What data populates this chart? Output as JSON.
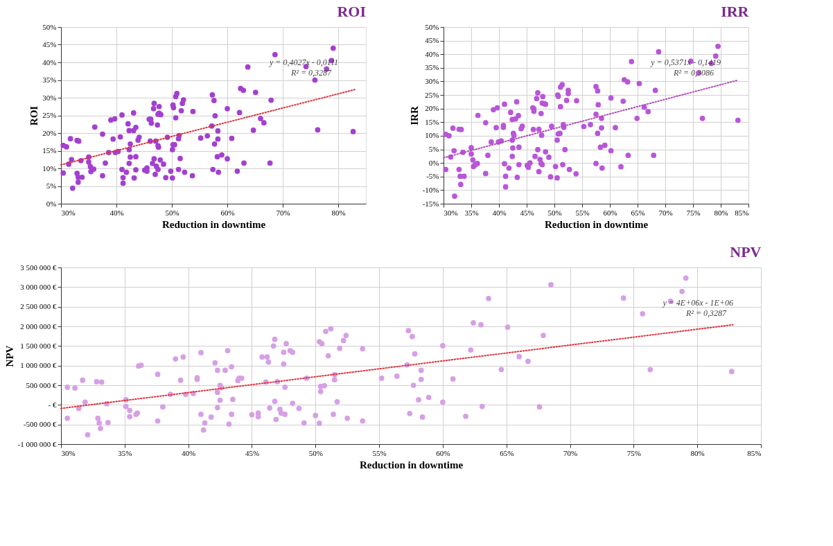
{
  "chart_data": [
    {
      "type": "scatter",
      "title": "ROI",
      "xlabel": "Reduction in downtime",
      "ylabel": "ROI",
      "grid": true,
      "xlim": [
        30,
        85
      ],
      "xticks": [
        {
          "value": 30,
          "label": "30%"
        },
        {
          "value": 40,
          "label": "40%"
        },
        {
          "value": 50,
          "label": "50%"
        },
        {
          "value": 60,
          "label": "60%"
        },
        {
          "value": 70,
          "label": "70%"
        },
        {
          "value": 80,
          "label": "80%"
        }
      ],
      "ylim": [
        0,
        50
      ],
      "yticks": [
        {
          "value": 0,
          "label": "0%"
        },
        {
          "value": 5,
          "label": "5%"
        },
        {
          "value": 10,
          "label": "10%"
        },
        {
          "value": 15,
          "label": "15%"
        },
        {
          "value": 20,
          "label": "20%"
        },
        {
          "value": 25,
          "label": "25%"
        },
        {
          "value": 30,
          "label": "30%"
        },
        {
          "value": 35,
          "label": "35%"
        },
        {
          "value": 40,
          "label": "40%"
        },
        {
          "value": 45,
          "label": "45%"
        },
        {
          "value": 50,
          "label": "50%"
        }
      ],
      "annotations": [
        "y = 0,4027x - 0,0111",
        "R² = 0,3287"
      ],
      "series": [
        {
          "marker": "circle",
          "color": "#a340cf",
          "x": [
            30.4,
            30.4,
            31.0,
            31.7,
            31.9,
            31.4,
            32.1,
            32.9,
            32.9,
            33.2,
            33.1,
            33.1,
            33.8,
            33.6,
            35.0,
            35.0,
            35.3,
            35.4,
            35.9,
            36.1,
            37.5,
            37.5,
            38.0,
            38.6,
            39.0,
            39.7,
            39.4,
            39.8,
            40.3,
            40.7,
            41.0,
            41.0,
            41.2,
            41.2,
            41.8,
            42.1,
            42.3,
            42.3,
            42.5,
            42.5,
            42.3,
            43.1,
            43.1,
            43.5,
            43.5,
            43.5,
            43.2,
            44.1,
            43.9,
            45.1,
            45.5,
            45.5,
            45.9,
            46.2,
            46.3,
            46.1,
            46.5,
            46.8,
            46.7,
            47.1,
            46.8,
            47.0,
            47.2,
            47.4,
            47.5,
            47.6,
            47.5,
            47.7,
            47.5,
            47.7,
            48.0,
            47.9,
            48.5,
            48.9,
            49.2,
            49.8,
            50.1,
            50.1,
            50.2,
            50.5,
            50.2,
            50.3,
            50.7,
            50.9,
            50.7,
            51.2,
            51.3,
            51.2,
            51.5,
            51.7,
            51.9,
            52.1,
            52.3,
            53.8,
            53.7,
            55.2,
            56.4,
            57.3,
            57.6,
            57.2,
            57.8,
            57.7,
            57.4,
            58.2,
            58.3,
            58.3,
            58.4,
            59.0,
            60.0,
            60.0,
            60.8,
            61.8,
            62.2,
            62.4,
            62.9,
            63.0,
            63.7,
            64.7,
            65.1,
            66.0,
            66.6,
            67.7,
            67.9,
            68.6,
            74.2,
            75.8,
            76.3,
            77.9,
            78.8,
            79.1,
            82.7
          ],
          "values": [
            8.7,
            16.5,
            16.1,
            18.4,
            12.5,
            11.2,
            4.4,
            8.6,
            17.9,
            17.7,
            7.5,
            6.1,
            7.5,
            12.2,
            13.2,
            11.8,
            10.5,
            9.1,
            9.8,
            21.7,
            19.7,
            7.9,
            11.5,
            14.5,
            23.7,
            24.0,
            18.3,
            14.5,
            14.8,
            18.9,
            25.1,
            9.7,
            7.4,
            5.8,
            8.9,
            22.6,
            20.7,
            15.3,
            16.9,
            13.2,
            11.4,
            25.7,
            20.7,
            21.6,
            13.3,
            9.6,
            7.3,
            18.8,
            18.0,
            9.5,
            10.1,
            9.2,
            23.9,
            23.9,
            22.8,
            17.7,
            11.4,
            28.4,
            26.9,
            17.7,
            12.7,
            8.3,
            10.6,
            22.3,
            16.4,
            16.0,
            9.7,
            27.5,
            25.3,
            25.6,
            25.2,
            12.4,
            11.2,
            7.4,
            18.8,
            9.2,
            7.3,
            15.3,
            16.7,
            16.7,
            27.9,
            27.2,
            30.3,
            31.2,
            24.3,
            18.4,
            19.3,
            9.7,
            12.8,
            26.3,
            28.4,
            29.4,
            8.9,
            26.1,
            7.9,
            18.6,
            19.2,
            30.8,
            29.2,
            22.0,
            24.9,
            16.9,
            9.7,
            13.3,
            18.3,
            20.6,
            8.9,
            13.8,
            12.7,
            26.9,
            18.5,
            9.2,
            25.8,
            32.6,
            32.1,
            11.5,
            38.7,
            20.8,
            31.5,
            24.1,
            22.9,
            11.5,
            29.3,
            42.2,
            38.8,
            35.0,
            20.9,
            38.1,
            40.5,
            44.0,
            20.4
          ]
        },
        {
          "type": "line",
          "color": "#e0303a",
          "line_style": "dotted",
          "x": [
            30,
            83
          ],
          "values": [
            11.0,
            32.3
          ]
        }
      ]
    },
    {
      "type": "scatter",
      "title": "IRR",
      "xlabel": "Reduction in downtime",
      "ylabel": "IRR",
      "grid": true,
      "xlim": [
        30,
        85
      ],
      "xticks": [
        {
          "value": 30,
          "label": "30%"
        },
        {
          "value": 35,
          "label": "35%"
        },
        {
          "value": 40,
          "label": "40%"
        },
        {
          "value": 45,
          "label": "45%"
        },
        {
          "value": 50,
          "label": "50%"
        },
        {
          "value": 55,
          "label": "55%"
        },
        {
          "value": 60,
          "label": "60%"
        },
        {
          "value": 65,
          "label": "65%"
        },
        {
          "value": 70,
          "label": "70%"
        },
        {
          "value": 75,
          "label": "75%"
        },
        {
          "value": 80,
          "label": "80%"
        },
        {
          "value": 85,
          "label": "85%"
        }
      ],
      "ylim": [
        -15,
        50
      ],
      "yticks": [
        {
          "value": -15,
          "label": "-15%"
        },
        {
          "value": -10,
          "label": "-10%"
        },
        {
          "value": -5,
          "label": "-5%"
        },
        {
          "value": 0,
          "label": "0%"
        },
        {
          "value": 5,
          "label": "5%"
        },
        {
          "value": 10,
          "label": "10%"
        },
        {
          "value": 15,
          "label": "15%"
        },
        {
          "value": 20,
          "label": "20%"
        },
        {
          "value": 25,
          "label": "25%"
        },
        {
          "value": 30,
          "label": "30%"
        },
        {
          "value": 35,
          "label": "35%"
        },
        {
          "value": 40,
          "label": "40%"
        },
        {
          "value": 45,
          "label": "45%"
        },
        {
          "value": 50,
          "label": "50%"
        }
      ],
      "annotations": [
        "y = 0,5371x - 0,1419",
        "R² = 0,3086"
      ],
      "series": [
        {
          "marker": "circle",
          "color": "#b856d8",
          "x": [
            30.4,
            30.4,
            31.0,
            31.3,
            31.7,
            31.9,
            32.0,
            32.8,
            32.8,
            33.2,
            33.0,
            33.1,
            33.5,
            33.7,
            35.0,
            35.0,
            35.3,
            35.4,
            35.7,
            36.1,
            36.2,
            37.6,
            37.6,
            38.0,
            38.6,
            39.0,
            39.7,
            39.5,
            39.9,
            40.4,
            40.8,
            40.8,
            41.0,
            41.0,
            41.2,
            41.2,
            41.8,
            42.1,
            42.4,
            42.4,
            42.4,
            42.5,
            42.6,
            42.7,
            43.0,
            43.2,
            43.3,
            43.6,
            43.6,
            43.5,
            44.0,
            44.2,
            45.1,
            45.3,
            45.6,
            46.1,
            46.3,
            46.3,
            46.2,
            46.5,
            46.8,
            47.0,
            47.0,
            47.2,
            47.2,
            47.4,
            47.6,
            47.7,
            47.6,
            47.8,
            47.9,
            47.8,
            48.2,
            48.4,
            48.4,
            49.0,
            49.3,
            49.5,
            50.2,
            50.5,
            50.6,
            50.7,
            50.5,
            50.7,
            51.0,
            51.1,
            51.4,
            51.1,
            51.6,
            51.7,
            51.5,
            51.9,
            52.2,
            52.5,
            52.5,
            52.7,
            54.0,
            53.9,
            55.3,
            56.5,
            57.5,
            57.8,
            57.5,
            57.9,
            57.8,
            57.5,
            58.3,
            58.5,
            58.5,
            58.6,
            59.1,
            60.2,
            60.2,
            61.0,
            62.0,
            62.4,
            62.6,
            63.2,
            63.3,
            63.9,
            64.9,
            65.3,
            66.2,
            66.9,
            67.9,
            68.2,
            68.8,
            74.6,
            76.0,
            76.7,
            78.3,
            79.1,
            79.5,
            83.1
          ],
          "values": [
            10.5,
            -2.4,
            10.0,
            2.2,
            12.8,
            4.5,
            -12.2,
            12.4,
            -2.4,
            12.3,
            -4.9,
            -7.9,
            3.9,
            -4.9,
            5.6,
            3.3,
            1.1,
            -1.3,
            -0.7,
            -0.2,
            17.5,
            14.8,
            -3.9,
            2.8,
            7.7,
            19.6,
            20.3,
            13.0,
            7.7,
            8.1,
            13.8,
            13.1,
            21.6,
            -0.3,
            -4.9,
            -8.8,
            -1.9,
            18.6,
            16.0,
            8.4,
            2.4,
            5.5,
            10.9,
            10.1,
            16.2,
            22.5,
            -5.3,
            5.8,
            -0.6,
            17.4,
            12.6,
            13.5,
            -0.9,
            -1.6,
            0.0,
            20.3,
            19.9,
            19.0,
            12.3,
            2.4,
            23.7,
            25.8,
            4.9,
            12.4,
            -3.2,
            1.3,
            18.2,
            10.2,
            -0.2,
            -0.6,
            24.4,
            22.0,
            21.8,
            21.6,
            4.1,
            2.1,
            -5.1,
            13.5,
            -1.3,
            -5.5,
            25.0,
            24.5,
            8.4,
            10.7,
            10.9,
            27.9,
            28.8,
            20.7,
            14.1,
            13.1,
            -0.6,
            4.9,
            23.0,
            26.7,
            25.5,
            -2.4,
            22.9,
            -4.0,
            13.4,
            14.1,
            28.1,
            26.5,
            17.9,
            21.4,
            10.9,
            -0.2,
            5.8,
            16.4,
            12.9,
            -1.9,
            6.5,
            23.9,
            4.5,
            13.0,
            -1.4,
            22.7,
            30.6,
            29.8,
            2.8,
            37.3,
            16.4,
            29.2,
            20.5,
            18.9,
            2.8,
            26.7,
            40.9,
            37.4,
            33.1,
            16.4,
            36.6,
            39.3,
            42.9,
            15.7
          ]
        },
        {
          "type": "line",
          "color": "#b04ab8",
          "line_style": "dotted",
          "x": [
            30,
            83
          ],
          "values": [
            1.9,
            30.4
          ]
        }
      ]
    },
    {
      "type": "scatter",
      "title": "NPV",
      "xlabel": "Reduction in downtime",
      "ylabel": "NPV",
      "grid": true,
      "xlim": [
        30,
        85
      ],
      "xticks": [
        {
          "value": 30,
          "label": "30%"
        },
        {
          "value": 35,
          "label": "35%"
        },
        {
          "value": 40,
          "label": "40%"
        },
        {
          "value": 45,
          "label": "45%"
        },
        {
          "value": 50,
          "label": "50%"
        },
        {
          "value": 55,
          "label": "55%"
        },
        {
          "value": 60,
          "label": "60%"
        },
        {
          "value": 65,
          "label": "65%"
        },
        {
          "value": 70,
          "label": "70%"
        },
        {
          "value": 75,
          "label": "75%"
        },
        {
          "value": 80,
          "label": "80%"
        },
        {
          "value": 85,
          "label": "85%"
        }
      ],
      "ylim": [
        -1000000,
        3500000
      ],
      "yticks": [
        {
          "value": -1000000,
          "label": "-1 000 000 €"
        },
        {
          "value": -500000,
          "label": "-500 000 €"
        },
        {
          "value": 0,
          "label": "- €"
        },
        {
          "value": 500000,
          "label": "500 000 €"
        },
        {
          "value": 1000000,
          "label": "1 000 000 €"
        },
        {
          "value": 1500000,
          "label": "1 500 000 €"
        },
        {
          "value": 2000000,
          "label": "2 000 000 €"
        },
        {
          "value": 2500000,
          "label": "2 500 000 €"
        },
        {
          "value": 3000000,
          "label": "3 000 000 €"
        },
        {
          "value": 3500000,
          "label": "3 500 000 €"
        }
      ],
      "annotations": [
        "y = 4E+06x - 1E+06",
        "R² = 0,3287"
      ],
      "series": [
        {
          "marker": "circle",
          "color": "#d6a0e4",
          "x": [
            30.5,
            30.5,
            31.1,
            31.4,
            31.7,
            31.9,
            32.1,
            32.8,
            32.9,
            33.0,
            33.1,
            33.2,
            33.6,
            33.7,
            35.1,
            35.1,
            35.4,
            35.4,
            35.9,
            36.0,
            36.1,
            36.3,
            37.6,
            37.6,
            38.0,
            38.6,
            39.0,
            39.4,
            39.6,
            39.8,
            40.4,
            40.7,
            40.7,
            41.0,
            41.0,
            41.3,
            41.2,
            41.8,
            42.1,
            42.3,
            42.3,
            42.3,
            42.5,
            42.5,
            42.6,
            42.9,
            43.1,
            43.2,
            43.4,
            43.5,
            43.4,
            43.9,
            44.0,
            44.2,
            45.0,
            45.5,
            45.5,
            45.8,
            46.1,
            46.2,
            46.3,
            46.4,
            46.7,
            46.8,
            46.8,
            46.9,
            47.0,
            47.2,
            47.3,
            47.6,
            47.5,
            47.5,
            47.6,
            47.7,
            48.0,
            48.2,
            48.2,
            48.7,
            49.1,
            49.3,
            50.0,
            50.3,
            50.3,
            50.5,
            50.4,
            50.4,
            50.7,
            50.8,
            51.2,
            51.0,
            51.4,
            51.5,
            51.5,
            51.7,
            51.9,
            52.2,
            52.4,
            52.5,
            53.7,
            53.7,
            55.2,
            56.4,
            57.3,
            57.6,
            57.2,
            57.4,
            57.8,
            57.7,
            58.1,
            58.3,
            58.3,
            58.4,
            58.9,
            60.0,
            60.0,
            60.8,
            61.8,
            62.2,
            62.4,
            63.0,
            63.1,
            63.6,
            64.6,
            65.1,
            66.0,
            66.7,
            67.6,
            67.9,
            68.5,
            74.2,
            75.7,
            76.3,
            77.9,
            78.8,
            79.1,
            82.7
          ],
          "values": [
            450000,
            -340000,
            430000,
            -90000,
            630000,
            70000,
            -760000,
            590000,
            -340000,
            -460000,
            -600000,
            580000,
            30000,
            -450000,
            130000,
            -40000,
            -140000,
            -300000,
            -240000,
            -210000,
            990000,
            1010000,
            780000,
            -410000,
            -50000,
            270000,
            1170000,
            630000,
            1220000,
            270000,
            290000,
            690000,
            650000,
            -240000,
            1330000,
            -460000,
            -640000,
            -310000,
            1070000,
            880000,
            -70000,
            320000,
            120000,
            500000,
            440000,
            880000,
            1380000,
            -490000,
            970000,
            140000,
            -240000,
            620000,
            680000,
            680000,
            -250000,
            -210000,
            -300000,
            1220000,
            580000,
            1220000,
            1090000,
            -80000,
            1500000,
            1670000,
            90000,
            -370000,
            590000,
            -110000,
            -210000,
            -240000,
            1340000,
            1040000,
            450000,
            1560000,
            1380000,
            1340000,
            40000,
            -90000,
            -460000,
            680000,
            -270000,
            -470000,
            1610000,
            1560000,
            340000,
            470000,
            490000,
            1870000,
            1940000,
            1250000,
            -240000,
            770000,
            640000,
            80000,
            1440000,
            1640000,
            1770000,
            -340000,
            1430000,
            -410000,
            680000,
            730000,
            1890000,
            1740000,
            1020000,
            -220000,
            1300000,
            500000,
            130000,
            880000,
            650000,
            -310000,
            190000,
            70000,
            1510000,
            660000,
            -290000,
            1400000,
            2090000,
            2040000,
            -40000,
            2710000,
            900000,
            1980000,
            1230000,
            1110000,
            -50000,
            1770000,
            3060000,
            2720000,
            2320000,
            900000,
            2640000,
            2890000,
            3230000,
            850000
          ]
        },
        {
          "type": "line",
          "color": "#e0303a",
          "line_style": "dotted",
          "x": [
            30,
            82.8
          ],
          "values": [
            -90000,
            2040000
          ]
        }
      ]
    }
  ]
}
